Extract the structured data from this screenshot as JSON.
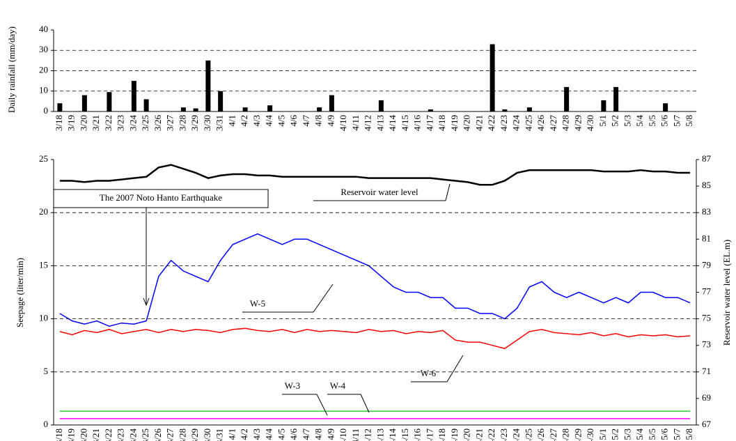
{
  "chart_data": [
    {
      "type": "bar",
      "y_label": "Daily rainfall (mm/day)",
      "categories": [
        "3/18",
        "3/19",
        "3/20",
        "3/21",
        "3/22",
        "3/23",
        "3/24",
        "3/25",
        "3/26",
        "3/27",
        "3/28",
        "3/29",
        "3/30",
        "3/31",
        "4/1",
        "4/2",
        "4/3",
        "4/4",
        "4/5",
        "4/6",
        "4/7",
        "4/8",
        "4/9",
        "4/10",
        "4/11",
        "4/12",
        "4/13",
        "4/14",
        "4/15",
        "4/16",
        "4/17",
        "4/18",
        "4/19",
        "4/20",
        "4/21",
        "4/22",
        "4/23",
        "4/24",
        "4/25",
        "4/26",
        "4/27",
        "4/28",
        "4/29",
        "4/30",
        "5/1",
        "5/2",
        "5/3",
        "5/4",
        "5/5",
        "5/6",
        "5/7",
        "5/8"
      ],
      "values": [
        4,
        0,
        8,
        0,
        9.5,
        0,
        15,
        6,
        0,
        0,
        2,
        1.5,
        25,
        10,
        0,
        2,
        0,
        3,
        0,
        0,
        0,
        2,
        8,
        0,
        0,
        0,
        5.5,
        0,
        0,
        0,
        1,
        0,
        0,
        0,
        0,
        33,
        1,
        0,
        2,
        0,
        0,
        12,
        0,
        0,
        5.5,
        12,
        0,
        0,
        0,
        4,
        0,
        0
      ],
      "color": "#000000",
      "ylim": [
        0,
        40
      ],
      "yticks": [
        0,
        10,
        20,
        30,
        40
      ],
      "grid": true
    },
    {
      "type": "line",
      "y_label": "Seepage (liter/min)",
      "y2_label": "Reservoir water level (EL.m)",
      "annotation": "The 2007 Noto Hanto Earthquake",
      "categories": [
        "3/18",
        "3/19",
        "3/20",
        "3/21",
        "3/22",
        "3/23",
        "3/24",
        "3/25",
        "3/26",
        "3/27",
        "3/28",
        "3/29",
        "3/30",
        "3/31",
        "4/1",
        "4/2",
        "4/3",
        "4/4",
        "4/5",
        "4/6",
        "4/7",
        "4/8",
        "4/9",
        "4/10",
        "4/11",
        "4/12",
        "4/13",
        "4/14",
        "4/15",
        "4/16",
        "4/17",
        "4/18",
        "4/19",
        "4/20",
        "4/21",
        "4/22",
        "4/23",
        "4/24",
        "4/25",
        "4/26",
        "4/27",
        "4/28",
        "4/29",
        "4/30",
        "5/1",
        "5/2",
        "5/3",
        "5/4",
        "5/5",
        "5/6",
        "5/7",
        "5/8"
      ],
      "ylim": [
        0,
        25
      ],
      "yticks": [
        0,
        5,
        10,
        15,
        20,
        25
      ],
      "y2lim": [
        67,
        87
      ],
      "y2ticks": [
        67,
        69,
        71,
        73,
        75,
        77,
        79,
        81,
        83,
        85,
        87
      ],
      "grid": true,
      "series": [
        {
          "name": "W-5",
          "color": "#0000ff",
          "values": [
            10.5,
            9.8,
            9.5,
            9.8,
            9.3,
            9.6,
            9.5,
            9.8,
            14,
            15.5,
            14.5,
            14,
            13.5,
            15.5,
            17,
            17.5,
            18,
            17.5,
            17,
            17.5,
            17.5,
            17,
            16.5,
            16,
            15.5,
            15,
            14,
            13,
            12.5,
            12.5,
            12,
            12,
            11,
            11,
            10.5,
            10.5,
            10,
            11,
            13,
            13.5,
            12.5,
            12,
            12.5,
            12,
            11.5,
            12,
            11.5,
            12.5,
            12.5,
            12,
            12,
            11.5
          ]
        },
        {
          "name": "W-6",
          "color": "#ff0000",
          "values": [
            8.8,
            8.5,
            8.9,
            8.7,
            9,
            8.6,
            8.8,
            9,
            8.7,
            9,
            8.8,
            9,
            8.9,
            8.7,
            9,
            9.1,
            8.9,
            8.8,
            9,
            8.7,
            9,
            8.8,
            8.9,
            8.8,
            8.7,
            9,
            8.8,
            8.9,
            8.6,
            8.8,
            8.7,
            8.9,
            8,
            7.8,
            7.8,
            7.5,
            7.2,
            8,
            8.8,
            9,
            8.7,
            8.6,
            8.5,
            8.7,
            8.4,
            8.6,
            8.3,
            8.5,
            8.4,
            8.5,
            8.3,
            8.4
          ]
        },
        {
          "name": "W-3",
          "color": "#ff00ff",
          "values": [
            0.6,
            0.6,
            0.6,
            0.6,
            0.6,
            0.6,
            0.6,
            0.6,
            0.6,
            0.6,
            0.6,
            0.6,
            0.6,
            0.6,
            0.6,
            0.6,
            0.6,
            0.6,
            0.6,
            0.6,
            0.6,
            0.6,
            0.6,
            0.6,
            0.6,
            0.6,
            0.6,
            0.6,
            0.6,
            0.6,
            0.6,
            0.6,
            0.6,
            0.6,
            0.6,
            0.6,
            0.6,
            0.6,
            0.6,
            0.6,
            0.6,
            0.6,
            0.6,
            0.6,
            0.6,
            0.6,
            0.6,
            0.6,
            0.6,
            0.6,
            0.6,
            0.6
          ]
        },
        {
          "name": "W-4",
          "color": "#33cc33",
          "values": [
            1.3,
            1.3,
            1.3,
            1.3,
            1.3,
            1.3,
            1.3,
            1.3,
            1.3,
            1.3,
            1.3,
            1.3,
            1.3,
            1.3,
            1.3,
            1.3,
            1.3,
            1.3,
            1.3,
            1.3,
            1.3,
            1.3,
            1.3,
            1.3,
            1.3,
            1.3,
            1.3,
            1.3,
            1.3,
            1.3,
            1.3,
            1.3,
            1.3,
            1.3,
            1.3,
            1.3,
            1.3,
            1.3,
            1.3,
            1.3,
            1.3,
            1.3,
            1.3,
            1.3,
            1.3,
            1.3,
            1.3,
            1.3,
            1.3,
            1.3,
            1.3,
            1.3
          ]
        },
        {
          "name": "Reservoir water level",
          "color": "#000000",
          "axis": "y2",
          "values": [
            85.4,
            85.4,
            85.3,
            85.4,
            85.4,
            85.5,
            85.6,
            85.7,
            86.4,
            86.6,
            86.3,
            86,
            85.6,
            85.8,
            85.9,
            85.9,
            85.8,
            85.8,
            85.7,
            85.7,
            85.7,
            85.7,
            85.7,
            85.7,
            85.7,
            85.6,
            85.6,
            85.6,
            85.6,
            85.6,
            85.6,
            85.5,
            85.4,
            85.3,
            85.1,
            85.1,
            85.4,
            86,
            86.2,
            86.2,
            86.2,
            86.2,
            86.2,
            86.2,
            86.1,
            86.1,
            86.1,
            86.2,
            86.1,
            86.1,
            86,
            86
          ]
        }
      ]
    }
  ]
}
